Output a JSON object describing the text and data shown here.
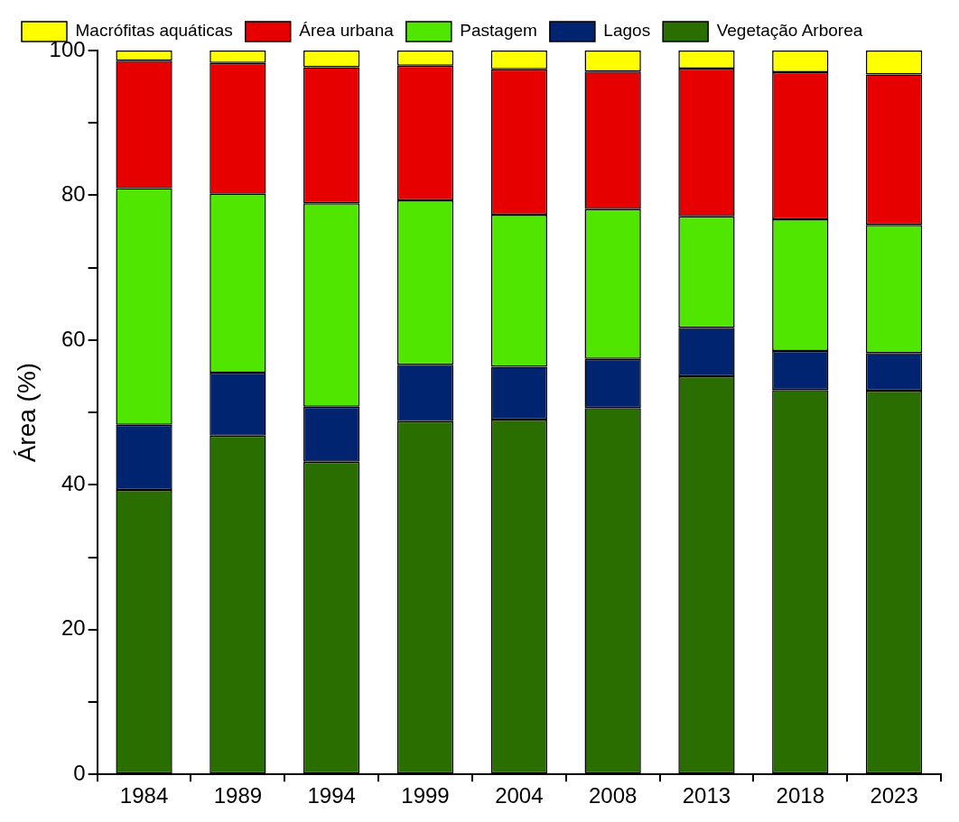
{
  "chart_data": {
    "type": "bar",
    "stacked": true,
    "ylabel": "Área (%)",
    "categories": [
      "1984",
      "1989",
      "1994",
      "1999",
      "2004",
      "2008",
      "2013",
      "2018",
      "2023"
    ],
    "series": [
      {
        "name": "Vegetação Arborea",
        "color": "#2a6e00",
        "values": [
          39.3,
          46.8,
          43.2,
          48.8,
          49.0,
          50.6,
          55.0,
          53.1,
          53.0
        ]
      },
      {
        "name": "Lagos",
        "color": "#002470",
        "values": [
          9.0,
          8.7,
          7.6,
          7.8,
          7.3,
          6.8,
          6.7,
          5.4,
          5.2
        ]
      },
      {
        "name": "Pastagem",
        "color": "#50e600",
        "values": [
          32.7,
          24.7,
          28.1,
          22.7,
          21.0,
          20.7,
          15.4,
          18.2,
          17.7
        ]
      },
      {
        "name": "Área urbana",
        "color": "#e60000",
        "values": [
          17.6,
          18.1,
          18.8,
          18.6,
          20.1,
          19.0,
          20.4,
          20.3,
          20.8
        ]
      },
      {
        "name": "Macrófitas aquáticas",
        "color": "#ffff00",
        "values": [
          1.4,
          1.7,
          2.3,
          2.1,
          2.6,
          2.9,
          2.5,
          3.0,
          3.3
        ]
      }
    ],
    "ylim": [
      0,
      100
    ],
    "yticks": [
      0,
      {
        "value": 10,
        "label": null
      },
      20,
      {
        "value": 30,
        "label": null
      },
      40,
      {
        "value": 50,
        "label": null
      },
      60,
      {
        "value": 70,
        "label": null
      },
      80,
      {
        "value": 90,
        "label": null
      },
      100
    ],
    "grid": false,
    "legend": "top left"
  }
}
